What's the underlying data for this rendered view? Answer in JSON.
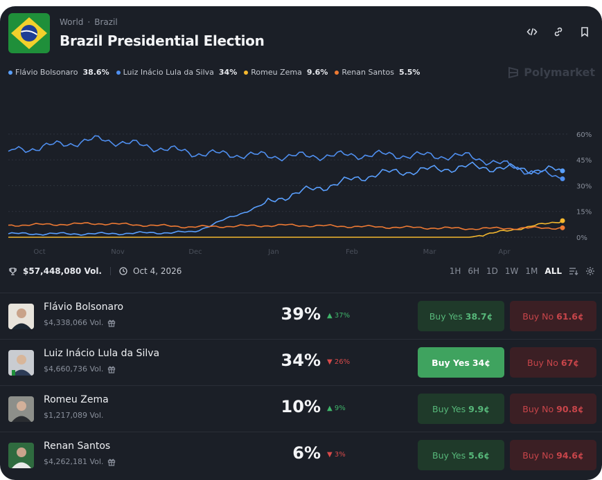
{
  "header": {
    "breadcrumb": [
      "World",
      "Brazil"
    ],
    "title": "Brazil Presidential Election"
  },
  "brand": "Polymarket",
  "legend": [
    {
      "name": "Flávio Bolsonaro",
      "pct": "38.6%",
      "color": "#5aa0ff"
    },
    {
      "name": "Luiz Inácio Lula da Silva",
      "pct": "34%",
      "color": "#4f8ff0"
    },
    {
      "name": "Romeu Zema",
      "pct": "9.6%",
      "color": "#f5b82e"
    },
    {
      "name": "Renan Santos",
      "pct": "5.5%",
      "color": "#ef7a33"
    }
  ],
  "chart_data": {
    "type": "line",
    "x": [
      "Oct",
      "Nov",
      "Dec",
      "Jan",
      "Feb",
      "Mar",
      "Apr"
    ],
    "ylim": [
      0,
      70
    ],
    "y_ticks": [
      "60%",
      "45%",
      "30%",
      "15%",
      "0%"
    ],
    "series": [
      {
        "name": "Flávio Bolsonaro",
        "color": "#5aa0ff",
        "values": [
          2,
          2,
          3,
          24,
          37,
          41,
          38.6
        ]
      },
      {
        "name": "Luiz Inácio Lula da Silva",
        "color": "#4f8ff0",
        "values": [
          50,
          57,
          49,
          47,
          48,
          47,
          34
        ]
      },
      {
        "name": "Romeu Zema",
        "color": "#f5b82e",
        "values": [
          0,
          0,
          0,
          0,
          0,
          0,
          9.6
        ]
      },
      {
        "name": "Renan Santos",
        "color": "#ef7a33",
        "values": [
          7,
          8,
          6,
          7,
          6,
          5,
          5.5
        ]
      }
    ]
  },
  "stats": {
    "volume": "$57,448,080 Vol.",
    "date": "Oct 4, 2026"
  },
  "ranges": [
    "1H",
    "6H",
    "1D",
    "1W",
    "1M",
    "ALL"
  ],
  "outcomes": [
    {
      "name": "Flávio Bolsonaro",
      "volume": "$4,338,066 Vol.",
      "pct": "39%",
      "change": "37%",
      "dir": "up",
      "yes": "Buy Yes",
      "yes_price": "38.7¢",
      "no": "Buy No",
      "no_price": "61.6¢"
    },
    {
      "name": "Luiz Inácio Lula da Silva",
      "volume": "$4,660,736 Vol.",
      "pct": "34%",
      "change": "26%",
      "dir": "down",
      "yes": "Buy Yes",
      "yes_price": "34¢",
      "no": "Buy No",
      "no_price": "67¢"
    },
    {
      "name": "Romeu Zema",
      "volume": "$1,217,089 Vol.",
      "pct": "10%",
      "change": "9%",
      "dir": "up",
      "yes": "Buy Yes",
      "yes_price": "9.9¢",
      "no": "Buy No",
      "no_price": "90.8¢"
    },
    {
      "name": "Renan Santos",
      "volume": "$4,262,181 Vol.",
      "pct": "6%",
      "change": "3%",
      "dir": "down",
      "yes": "Buy Yes",
      "yes_price": "5.6¢",
      "no": "Buy No",
      "no_price": "94.6¢"
    }
  ]
}
